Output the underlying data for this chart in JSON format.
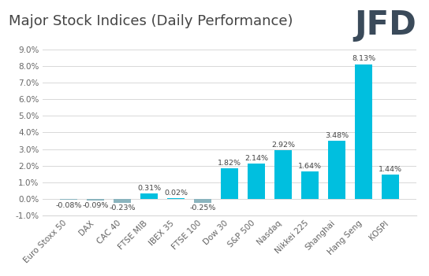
{
  "title": "Major Stock Indices (Daily Performance)",
  "categories": [
    "Euro Stoxx 50",
    "DAX",
    "CAC 40",
    "FTSE MIB",
    "IBEX 35",
    "FTSE 100",
    "Dow 30",
    "S&P 500",
    "Nasdaq",
    "Nikkei 225",
    "Shanghai",
    "Hang Seng",
    "KOSPI"
  ],
  "values": [
    -0.08,
    -0.09,
    -0.23,
    0.31,
    0.02,
    -0.25,
    1.82,
    2.14,
    2.92,
    1.64,
    3.48,
    8.13,
    1.44
  ],
  "labels": [
    "-0.08%",
    "-0.09%",
    "-0.23%",
    "0.31%",
    "0.02%",
    "-0.25%",
    "1.82%",
    "2.14%",
    "2.92%",
    "1.64%",
    "3.48%",
    "8.13%",
    "1.44%"
  ],
  "bar_color_pos": "#00BFDF",
  "bar_color_neg": "#8ab4be",
  "background_color": "#ffffff",
  "grid_color": "#d8d8d8",
  "title_color": "#444444",
  "label_color": "#444444",
  "tick_color": "#666666",
  "ylim": [
    -1.0,
    9.0
  ],
  "yticks": [
    -1.0,
    0.0,
    1.0,
    2.0,
    3.0,
    4.0,
    5.0,
    6.0,
    7.0,
    8.0,
    9.0
  ],
  "title_fontsize": 13,
  "label_fontsize": 6.8,
  "tick_fontsize": 7.5,
  "jfd_color": "#3a4a5a",
  "logo_fontsize": 30
}
